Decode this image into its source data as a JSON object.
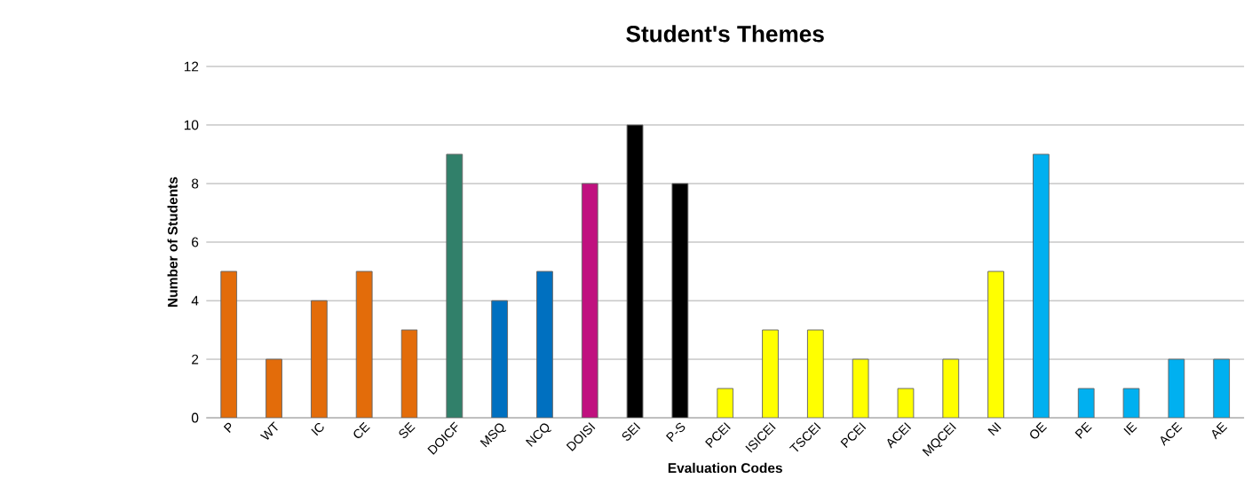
{
  "chart_data": {
    "type": "bar",
    "title": "Student's Themes",
    "xlabel": "Evaluation Codes",
    "ylabel": "Number of Students",
    "categories": [
      "P",
      "WT",
      "IC",
      "CE",
      "SE",
      "DOICF",
      "MSQ",
      "NCQ",
      "DOISI",
      "SEI",
      "P-S",
      "PCEI",
      "ISICEI",
      "TSCEI",
      "PCEI",
      "ACEI",
      "MQCEI",
      "NI",
      "OE",
      "PE",
      "IE",
      "ACE",
      "AE"
    ],
    "values": [
      5,
      2,
      4,
      5,
      3,
      9,
      4,
      5,
      8,
      10,
      8,
      1,
      3,
      3,
      2,
      1,
      2,
      5,
      9,
      1,
      1,
      2,
      2
    ],
    "colors": [
      "#e36c0a",
      "#e36c0a",
      "#e36c0a",
      "#e36c0a",
      "#e36c0a",
      "#31806a",
      "#0070c0",
      "#0070c0",
      "#c0117f",
      "#000000",
      "#000000",
      "#ffff00",
      "#ffff00",
      "#ffff00",
      "#ffff00",
      "#ffff00",
      "#ffff00",
      "#ffff00",
      "#00b0f0",
      "#00b0f0",
      "#00b0f0",
      "#00b0f0",
      "#00b0f0"
    ],
    "ylim": [
      0,
      12
    ],
    "yticks": [
      0,
      2,
      4,
      6,
      8,
      10,
      12
    ],
    "grid": "y"
  }
}
